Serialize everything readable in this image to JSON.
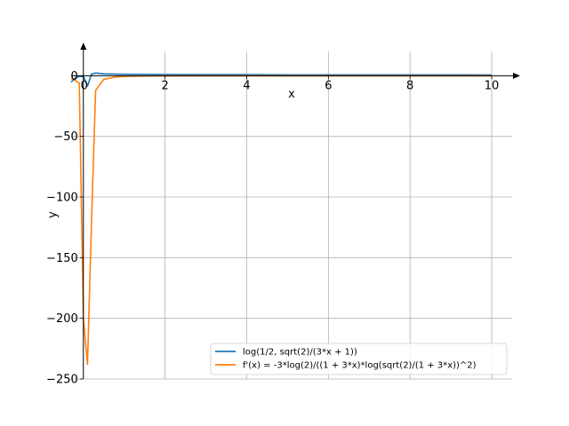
{
  "chart_data": {
    "type": "line",
    "xlabel": "x",
    "ylabel": "y",
    "xlim": [
      -0.3,
      10.5
    ],
    "ylim": [
      -250,
      20
    ],
    "grid": true,
    "legend_position": "lower-right",
    "x_ticks": [
      0,
      2,
      4,
      6,
      8,
      10
    ],
    "y_ticks": [
      0,
      -50,
      -100,
      -150,
      -200,
      -250
    ],
    "x_tick_labels": [
      "0",
      "2",
      "4",
      "6",
      "8",
      "10"
    ],
    "y_tick_labels": [
      "0",
      "−50",
      "−100",
      "−150",
      "−200",
      "−250"
    ],
    "series": [
      {
        "name": "log(1/2, sqrt(2)/(3*x + 1))",
        "color": "#1f77b4",
        "x": [
          -0.3,
          -0.2,
          -0.1,
          0.0,
          0.1,
          0.2,
          0.3,
          0.5,
          0.8,
          1.0,
          1.5,
          2.0,
          3.0,
          4.0,
          5.0,
          6.0,
          7.0,
          8.0,
          9.0,
          10.0
        ],
        "y": [
          -5.3,
          -1.8,
          -0.6,
          -0.5,
          -8.6,
          1.3,
          2.2,
          1.6,
          1.3,
          1.2,
          1.1,
          1.0,
          0.9,
          0.9,
          0.8,
          0.8,
          0.8,
          0.8,
          0.8,
          0.7
        ]
      },
      {
        "name": "f'(x) = -3*log(2)/((1 + 3*x)*log(sqrt(2)/(1 + 3*x))^2)",
        "color": "#ff7f0e",
        "x": [
          -0.3,
          -0.2,
          -0.1,
          0.0,
          0.1,
          0.2,
          0.3,
          0.5,
          0.8,
          1.0,
          1.5,
          2.0,
          3.0,
          4.0,
          5.0,
          6.0,
          7.0,
          8.0,
          9.0,
          10.0
        ],
        "y": [
          -2,
          -4,
          -6,
          -200,
          -238,
          -120,
          -12,
          -3,
          -1,
          -0.5,
          -0.3,
          -0.2,
          -0.1,
          -0.1,
          -0.1,
          -0.05,
          -0.05,
          -0.05,
          -0.05,
          -0.05
        ]
      }
    ]
  }
}
